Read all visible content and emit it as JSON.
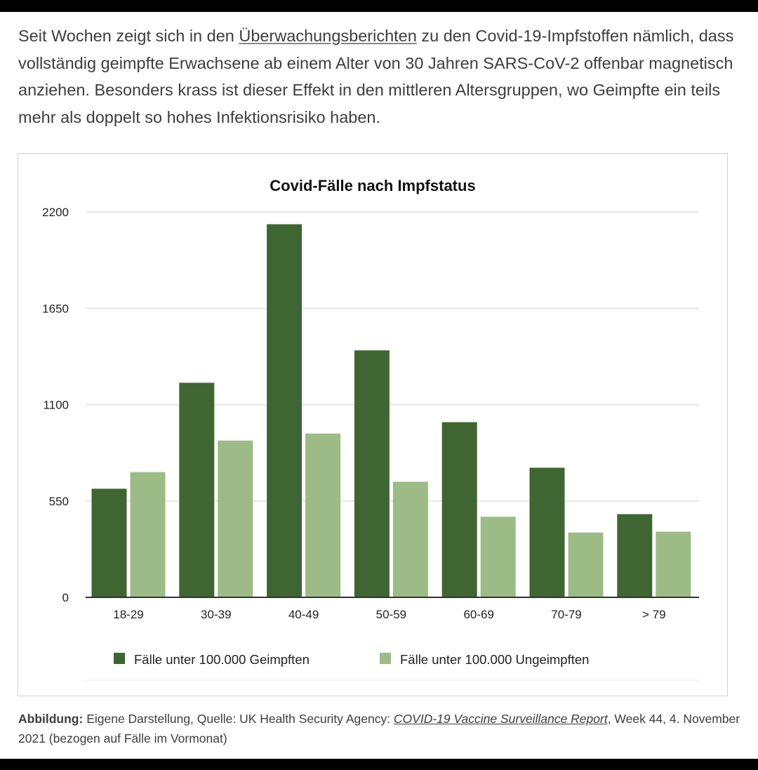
{
  "article": {
    "text_before": "Seit Wochen zeigt sich in den ",
    "link_text": "Überwachungsberichten",
    "text_after": " zu den Covid-19-Impfstoffen nämlich, dass vollständig geimpfte Erwachsene ab einem Alter von 30 Jahren SARS-CoV-2 offenbar magnetisch anziehen. Besonders krass ist dieser Effekt in den mittleren Altersgruppen, wo Geimpfte ein teils mehr als doppelt so hohes Infektionsrisiko haben."
  },
  "caption": {
    "label": "Abbildung:",
    "text1": " Eigene Darstellung, Quelle: UK Health Security Agency: ",
    "link_text": "COVID-19 Vaccine Surveillance Report",
    "text2": ", Week 44, 4. November 2021 (bezogen auf Fälle im Vormonat)"
  },
  "colors": {
    "vaccinated": "#3f6632",
    "unvaccinated": "#9dbb86",
    "gridline": "#e0e0e0",
    "axis": "#333333"
  },
  "chart_data": {
    "type": "bar",
    "title": "Covid-Fälle nach Impfstatus",
    "xlabel": "",
    "ylabel": "",
    "categories": [
      "18-29",
      "30-39",
      "40-49",
      "50-59",
      "60-69",
      "70-79",
      "> 79"
    ],
    "series": [
      {
        "name": "Fälle unter 100.000 Geimpften",
        "values": [
          620,
          1225,
          2130,
          1410,
          1000,
          740,
          475
        ]
      },
      {
        "name": "Fälle unter 100.000 Ungeimpften",
        "values": [
          715,
          895,
          935,
          660,
          460,
          370,
          375
        ]
      }
    ],
    "ylim": [
      0,
      2200
    ],
    "yticks": [
      "0",
      "550",
      "1100",
      "1650",
      "2200"
    ],
    "grid": true,
    "legend": "bottom"
  }
}
